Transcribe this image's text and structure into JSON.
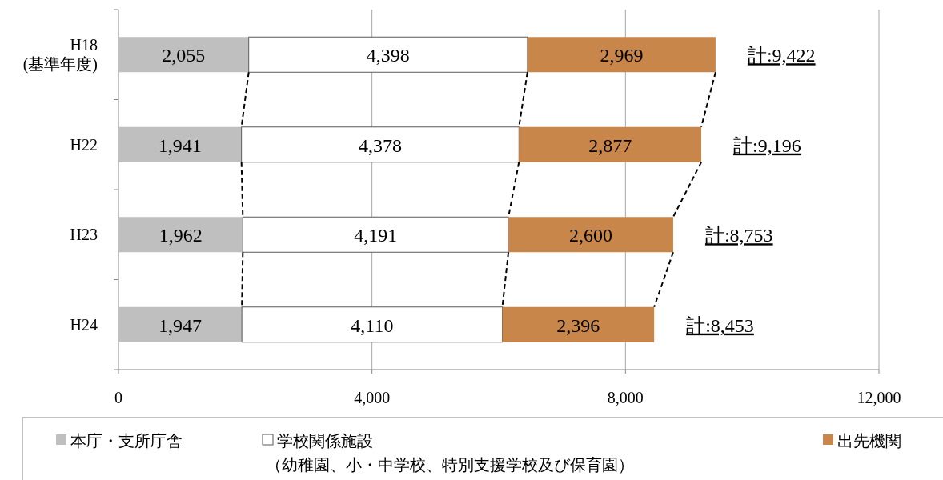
{
  "chart_data": {
    "type": "bar",
    "orientation": "horizontal",
    "stacked": true,
    "categories": [
      "H18\n(基準年度)",
      "H22",
      "H23",
      "H24"
    ],
    "series": [
      {
        "name": "本庁・支所庁舎",
        "color": "#bfbfbf",
        "values": [
          2055,
          1941,
          1962,
          1947
        ],
        "value_labels": [
          "2,055",
          "1,941",
          "1,962",
          "1,947"
        ]
      },
      {
        "name": "学校関係施設",
        "color": "#ffffff",
        "values": [
          4398,
          4378,
          4191,
          4110
        ],
        "value_labels": [
          "4,398",
          "4,378",
          "4,191",
          "4,110"
        ]
      },
      {
        "name": "出先機関",
        "color": "#c8864a",
        "values": [
          2969,
          2877,
          2600,
          2396
        ],
        "value_labels": [
          "2,969",
          "2,877",
          "2,600",
          "2,396"
        ]
      }
    ],
    "annotations": [
      "（幼稚園、小・中学校、特別支援学校及び保育園）"
    ],
    "totals": [
      "計:9,422",
      "計:9,196",
      "計:8,753",
      "計:8,453"
    ],
    "xlim": [
      0,
      12000
    ],
    "xticks": [
      0,
      {
        "value": 4000,
        "label": "4,000"
      },
      {
        "value": 8000,
        "label": "8,000"
      },
      {
        "value": 12000,
        "label": "12,000"
      }
    ],
    "grid": "x",
    "legend": "bottom"
  }
}
